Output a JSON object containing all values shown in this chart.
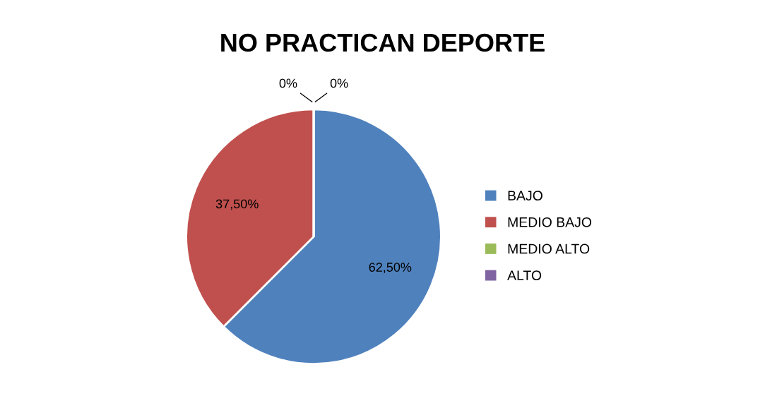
{
  "chart_data": {
    "type": "pie",
    "title": "NO PRACTICAN DEPORTE",
    "categories": [
      "BAJO",
      "MEDIO BAJO",
      "MEDIO ALTO",
      "ALTO"
    ],
    "values": [
      62.5,
      37.5,
      0,
      0
    ],
    "colors": [
      "#4f81bd",
      "#c0504d",
      "#9bbb59",
      "#8064a2"
    ],
    "value_labels": [
      "62,50%",
      "37,50%",
      "0%",
      "0%"
    ],
    "legend": "right"
  }
}
